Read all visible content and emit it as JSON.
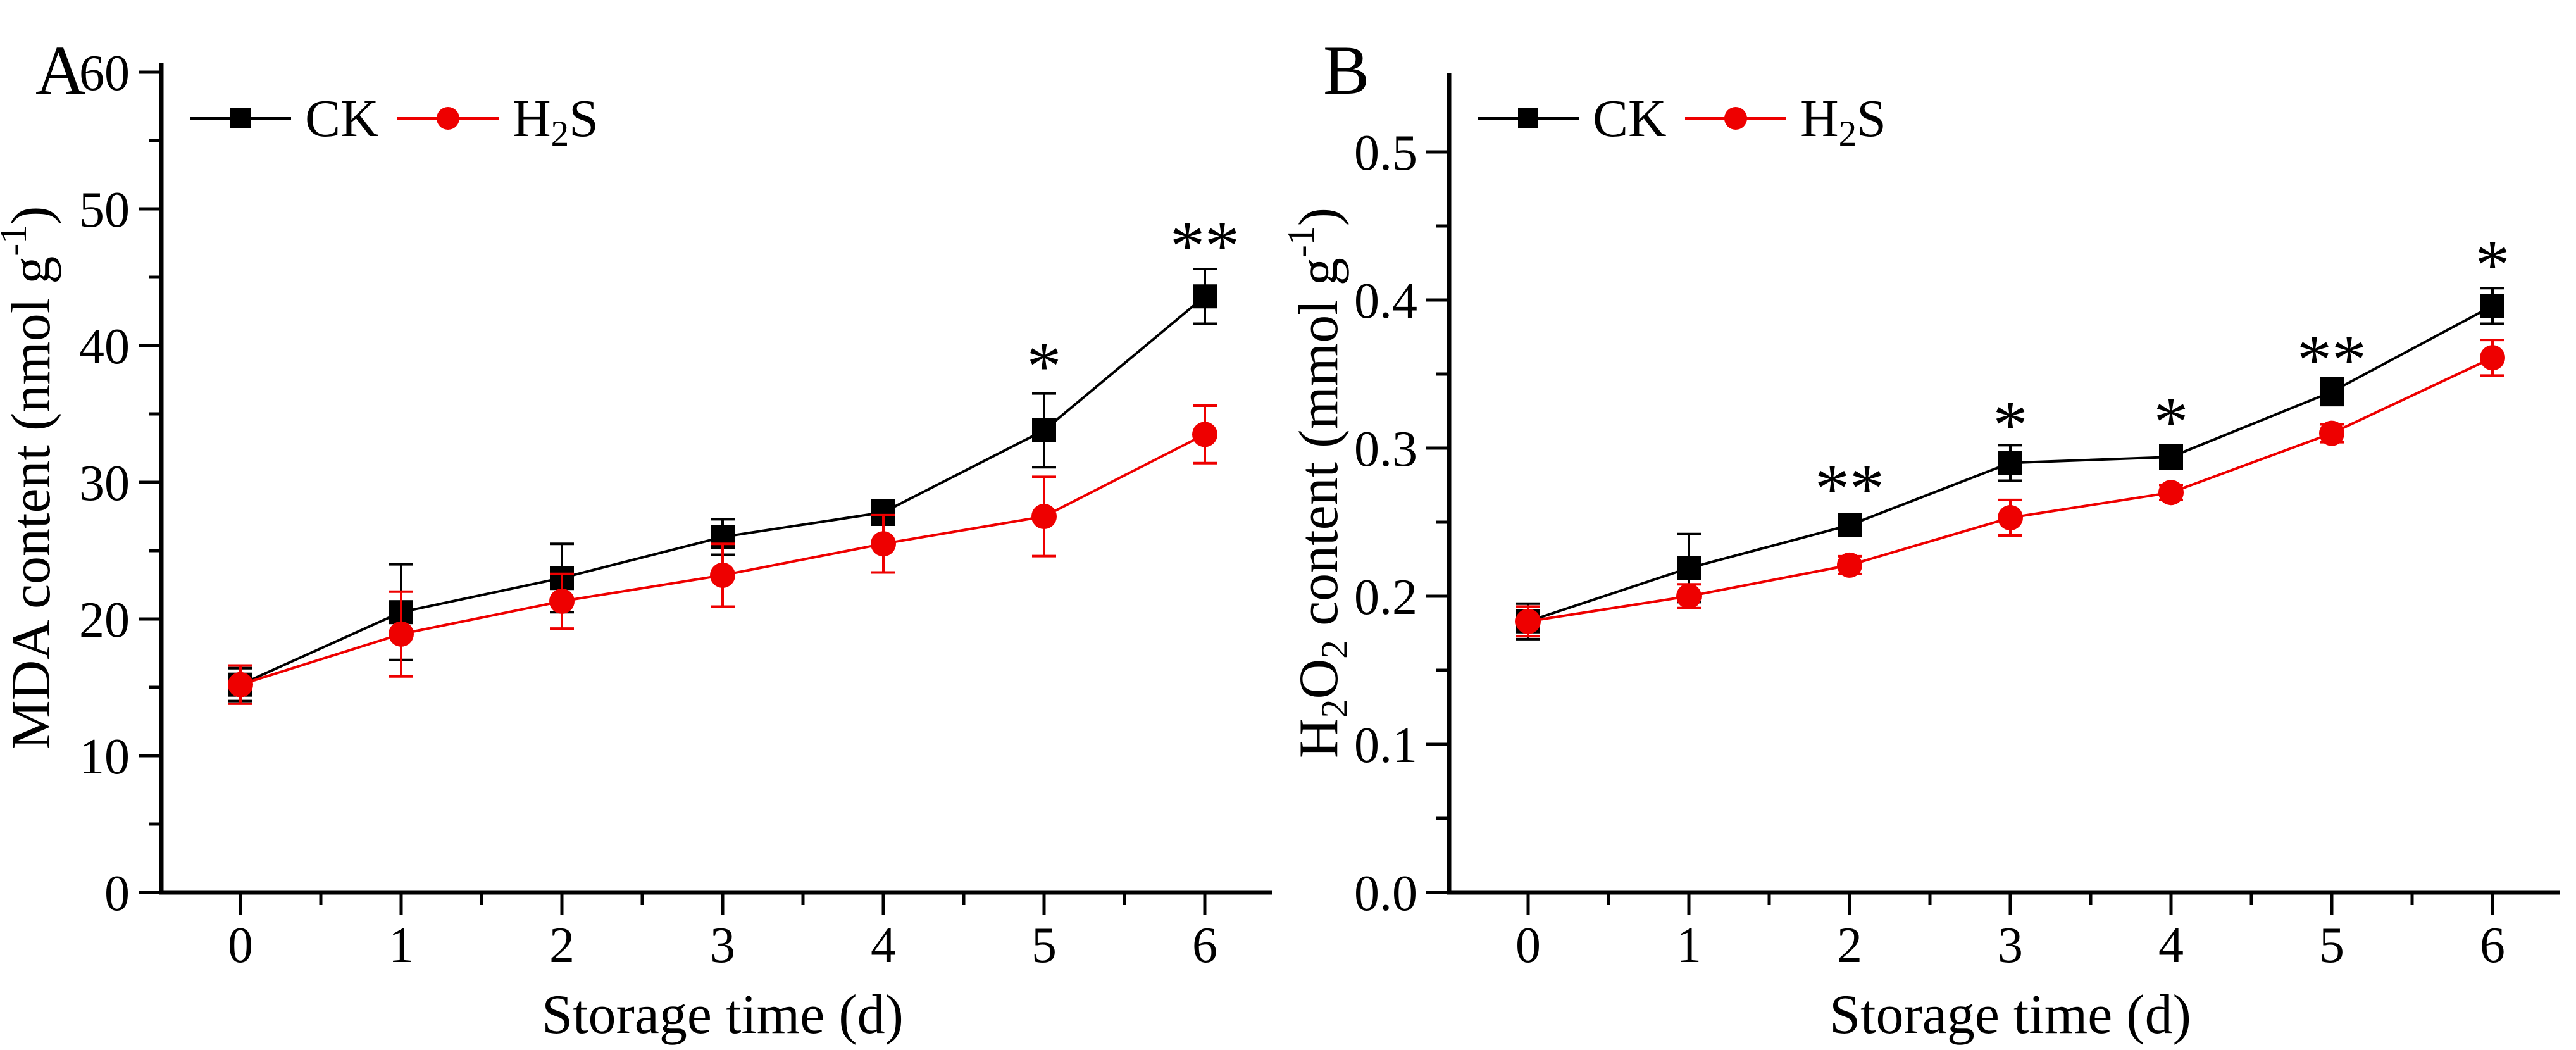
{
  "figure": {
    "background": "#ffffff",
    "accent_colors": {
      "ck": "#000000",
      "h2s": "#ee0000"
    }
  },
  "chart_data": [
    {
      "type": "line",
      "panel_label": "A",
      "title": "",
      "xlabel": "Storage time (d)",
      "ylabel_rich": [
        {
          "t": "MDA content (nmol g"
        },
        {
          "t": "-1",
          "sup": true
        },
        {
          "t": ")"
        }
      ],
      "x": [
        0,
        1,
        2,
        3,
        4,
        5,
        6
      ],
      "xtick_labels": [
        "0",
        "1",
        "2",
        "3",
        "4",
        "5",
        "6"
      ],
      "x_minor_step": 0.5,
      "ylim": [
        0,
        60
      ],
      "yticks": [
        0,
        10,
        20,
        30,
        40,
        50,
        60
      ],
      "ytick_labels": [
        "0",
        "10",
        "20",
        "30",
        "40",
        "50",
        "60"
      ],
      "y_minor_step": 5,
      "grid": false,
      "legend_position": "top-left-inside",
      "series": [
        {
          "id": "ck",
          "name_rich": [
            {
              "t": "CK"
            }
          ],
          "color": "#000000",
          "marker": "square",
          "values": [
            15.2,
            20.5,
            23.0,
            26.0,
            27.8,
            33.8,
            43.6
          ],
          "errors": [
            1.2,
            3.5,
            2.5,
            1.3,
            0.9,
            2.7,
            2.0
          ]
        },
        {
          "id": "h2s",
          "name_rich": [
            {
              "t": "H"
            },
            {
              "t": "2",
              "sub": true
            },
            {
              "t": "S"
            }
          ],
          "color": "#ee0000",
          "marker": "circle",
          "values": [
            15.2,
            18.9,
            21.3,
            23.2,
            25.5,
            27.5,
            33.5
          ],
          "errors": [
            1.4,
            3.1,
            2.0,
            2.3,
            2.1,
            2.9,
            2.1
          ]
        }
      ],
      "annotations": [
        {
          "x": 5,
          "y": 38.2,
          "text": "*"
        },
        {
          "x": 6,
          "y": 47.0,
          "text": "**"
        }
      ]
    },
    {
      "type": "line",
      "panel_label": "B",
      "title": "",
      "xlabel": "Storage time (d)",
      "ylabel_rich": [
        {
          "t": "H"
        },
        {
          "t": "2",
          "sub": true
        },
        {
          "t": "O"
        },
        {
          "t": "2",
          "sub": true
        },
        {
          "t": " content (mmol g"
        },
        {
          "t": "-1",
          "sup": true
        },
        {
          "t": ")"
        }
      ],
      "x": [
        0,
        1,
        2,
        3,
        4,
        5,
        6
      ],
      "xtick_labels": [
        "0",
        "1",
        "2",
        "3",
        "4",
        "5",
        "6"
      ],
      "x_minor_step": 0.5,
      "ylim": [
        0,
        0.5
      ],
      "yticks": [
        0,
        0.1,
        0.2,
        0.3,
        0.4,
        0.5
      ],
      "ytick_labels": [
        "0.0",
        "0.1",
        "0.2",
        "0.3",
        "0.4",
        "0.5"
      ],
      "y_minor_step": 0.05,
      "grid": false,
      "legend_position": "top-left-inside",
      "series": [
        {
          "id": "ck",
          "name_rich": [
            {
              "t": "CK"
            }
          ],
          "color": "#000000",
          "marker": "square",
          "values": [
            0.183,
            0.219,
            0.248,
            0.29,
            0.294,
            0.338,
            0.396
          ],
          "errors": [
            0.012,
            0.023,
            0.007,
            0.012,
            0.008,
            0.009,
            0.012
          ]
        },
        {
          "id": "h2s",
          "name_rich": [
            {
              "t": "H"
            },
            {
              "t": "2",
              "sub": true
            },
            {
              "t": "S"
            }
          ],
          "color": "#ee0000",
          "marker": "circle",
          "values": [
            0.183,
            0.2,
            0.221,
            0.253,
            0.27,
            0.31,
            0.361
          ],
          "errors": [
            0.01,
            0.008,
            0.006,
            0.012,
            0.005,
            0.006,
            0.012
          ]
        }
      ],
      "annotations": [
        {
          "x": 2,
          "y": 0.27,
          "text": "**"
        },
        {
          "x": 3,
          "y": 0.313,
          "text": "*"
        },
        {
          "x": 4,
          "y": 0.315,
          "text": "*"
        },
        {
          "x": 5,
          "y": 0.357,
          "text": "**"
        },
        {
          "x": 6,
          "y": 0.421,
          "text": "*"
        }
      ]
    }
  ]
}
